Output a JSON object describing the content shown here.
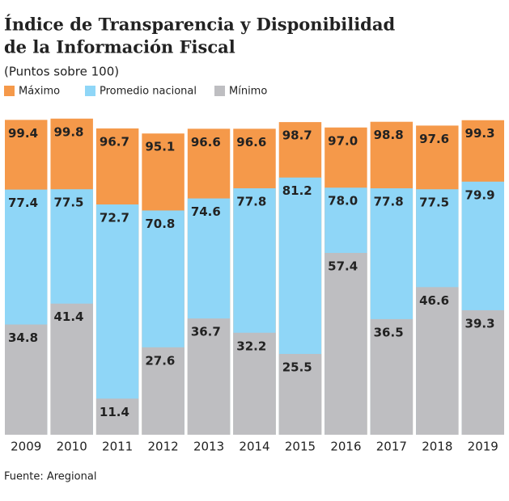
{
  "chart_data": {
    "type": "overlay_bar",
    "title_lines": [
      "Índice de Transparencia y Disponibilidad",
      "de la Información Fiscal"
    ],
    "subtitle": "(Puntos sobre 100)",
    "source": "Fuente: Aregional",
    "categories": [
      "2009",
      "2010",
      "2011",
      "2012",
      "2013",
      "2014",
      "2015",
      "2016",
      "2017",
      "2018",
      "2019"
    ],
    "ylim": [
      0,
      100
    ],
    "series": [
      {
        "name": "Máximo",
        "color": "#f5994a",
        "values": [
          99.4,
          99.8,
          96.7,
          95.1,
          96.6,
          96.6,
          98.7,
          97,
          98.8,
          97.6,
          99.3
        ],
        "value_labels": [
          "99.4",
          "99.8",
          "96.7",
          "95.1",
          "96.6",
          "96.6",
          "98.7",
          "97.0",
          "98.8",
          "97.6",
          "99.3"
        ]
      },
      {
        "name": "Promedio nacional",
        "color": "#8fd6f7",
        "values": [
          77.4,
          77.5,
          72.7,
          70.8,
          74.6,
          77.8,
          81.2,
          78,
          77.8,
          77.5,
          79.9
        ],
        "value_labels": [
          "77.4",
          "77.5",
          "72.7",
          "70.8",
          "74.6",
          "77.8",
          "81.2",
          "78.0",
          "77.8",
          "77.5",
          "79.9"
        ]
      },
      {
        "name": "Mínimo",
        "color": "#bebec1",
        "values": [
          34.8,
          41.4,
          11.4,
          27.6,
          36.7,
          32.2,
          25.5,
          57.4,
          36.5,
          46.6,
          39.3
        ]
      }
    ]
  }
}
